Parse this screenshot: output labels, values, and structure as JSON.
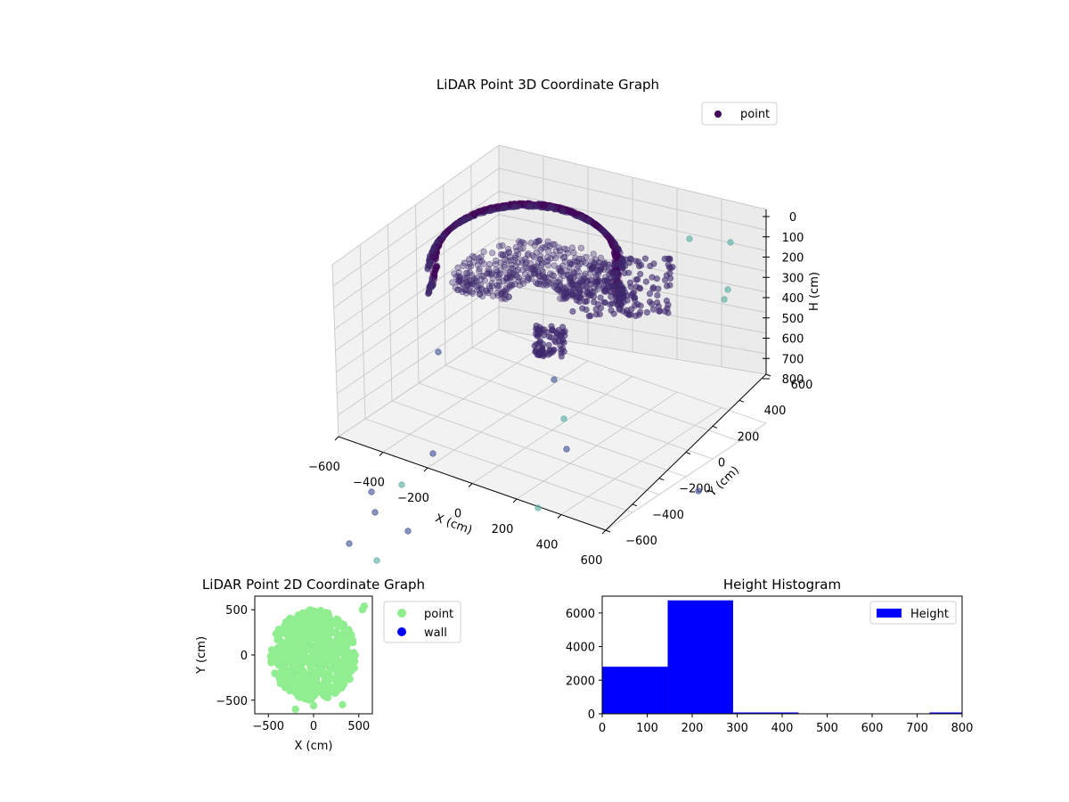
{
  "chart_data": [
    {
      "type": "scatter",
      "title": "LiDAR Point 3D Coordinate Graph",
      "xlabel": "X (cm)",
      "ylabel": "Y (cm)",
      "zlabel": "H (cm)",
      "xlim": [
        -600,
        600
      ],
      "ylim": [
        -600,
        600
      ],
      "zlim": [
        800,
        0
      ],
      "z_axis_inverted": true,
      "x_ticks": [
        "−600",
        "−400",
        "−200",
        "0",
        "200",
        "400",
        "600"
      ],
      "y_ticks": [
        "−600",
        "−400",
        "−200",
        "0",
        "200",
        "400",
        "600"
      ],
      "z_ticks": [
        "0",
        "100",
        "200",
        "300",
        "400",
        "500",
        "600",
        "700",
        "800"
      ],
      "legend": {
        "position": "upper-right",
        "entries": [
          "point"
        ]
      },
      "colormap": "viridis",
      "colors": {
        "main": "#3f2a6e",
        "dark": "#44075a",
        "light": "#5fb0a8"
      },
      "grid": true,
      "series": [
        {
          "name": "point",
          "description_shape": "dense curved shell of points forming a partial cylindrical wall, radius about 500 cm, heights mostly 100-300 cm, plus scattered outliers",
          "ring_radius_cm": 500,
          "ring_height_range_cm": [
            100,
            300
          ],
          "outliers": [
            {
              "x": 560,
              "y": 560,
              "h": 100
            },
            {
              "x": 550,
              "y": 540,
              "h": 130
            },
            {
              "x": 500,
              "y": 300,
              "h": 420
            },
            {
              "x": 520,
              "y": 250,
              "h": 470
            },
            {
              "x": -300,
              "y": 200,
              "h": 700
            },
            {
              "x": 0,
              "y": -200,
              "h": 650
            },
            {
              "x": 150,
              "y": -150,
              "h": 720
            },
            {
              "x": 200,
              "y": -300,
              "h": 780
            },
            {
              "x": -200,
              "y": -350,
              "h": 800
            },
            {
              "x": -500,
              "y": -400,
              "h": 800
            },
            {
              "x": -600,
              "y": -500,
              "h": 800
            },
            {
              "x": 300,
              "y": -550,
              "h": 800
            }
          ]
        }
      ]
    },
    {
      "type": "scatter",
      "title": "LiDAR Point 2D Coordinate Graph",
      "xlabel": "X (cm)",
      "ylabel": "Y (cm)",
      "xlim": [
        -650,
        650
      ],
      "ylim": [
        -650,
        650
      ],
      "x_ticks": [
        -500,
        0,
        500
      ],
      "x_tick_labels": [
        "−500",
        "0",
        "500"
      ],
      "y_ticks": [
        -500,
        0,
        500
      ],
      "y_tick_labels": [
        "−500",
        "0",
        "500"
      ],
      "legend": {
        "position": "outside-right",
        "entries": [
          "point",
          "wall"
        ]
      },
      "colors": {
        "point": "#90ee90",
        "wall": "#0000ff"
      },
      "series": [
        {
          "name": "point",
          "description_shape": "filled disk of points centered near origin, radius about 500 cm",
          "center": [
            0,
            0
          ],
          "radius": 500,
          "extra_points": [
            [
              560,
              540
            ],
            [
              540,
              500
            ],
            [
              -200,
              -600
            ],
            [
              320,
              -550
            ],
            [
              0,
              -560
            ]
          ]
        },
        {
          "name": "wall",
          "points": []
        }
      ]
    },
    {
      "type": "bar",
      "title": "Height Histogram",
      "xlabel": "",
      "ylabel": "",
      "xlim": [
        0,
        800
      ],
      "ylim": [
        0,
        7000
      ],
      "x_ticks": [
        0,
        100,
        200,
        300,
        400,
        500,
        600,
        700,
        800
      ],
      "y_ticks": [
        0,
        2000,
        4000,
        6000
      ],
      "legend": {
        "position": "top-right",
        "entries": [
          "Height"
        ]
      },
      "colors": {
        "bar": "#0000ff"
      },
      "bin_edges": [
        0,
        145.5,
        291,
        436.5,
        582,
        727.5,
        873
      ],
      "counts": [
        2800,
        6750,
        40,
        0,
        0,
        30
      ],
      "series": [
        {
          "name": "Height",
          "values": [
            2800,
            6750,
            40,
            0,
            0,
            30
          ]
        }
      ]
    }
  ]
}
